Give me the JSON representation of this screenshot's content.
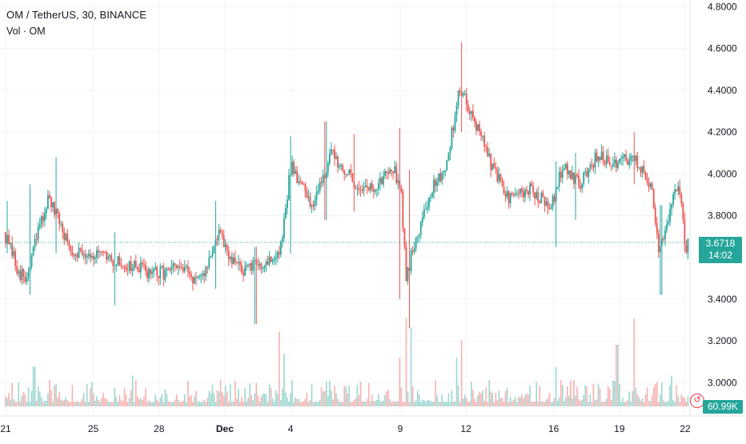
{
  "legend": {
    "title": "OM / TetherUS, 30, BINANCE",
    "volume_label": "Vol · OM"
  },
  "colors": {
    "up": "#26a69a",
    "down": "#ef5350",
    "grid": "#f0f3fa",
    "axis_text": "#131722",
    "last_price_line": "#26a69a"
  },
  "price_tag": {
    "price": "3.6718",
    "countdown": "14:02"
  },
  "volume_tag": "60.99K",
  "alert_icon": "clock-alert-icon",
  "chart_data": {
    "type": "candlestick",
    "title": "OM / TetherUS, 30, BINANCE",
    "ylim": [
      2.82,
      4.86
    ],
    "y_ticks": [
      "4.8000",
      "4.6000",
      "4.4000",
      "4.2000",
      "4.0000",
      "3.8000",
      "3.6000",
      "3.4000",
      "3.2000",
      "3.0000"
    ],
    "y_tick_values": [
      4.8,
      4.6,
      4.4,
      4.2,
      4.0,
      3.8,
      3.6,
      3.4,
      3.2,
      3.0
    ],
    "x_ticks": [
      "21",
      "25",
      "28",
      "Dec",
      "4",
      "9",
      "12",
      "16",
      "19",
      "22"
    ],
    "x_tick_days": [
      0,
      4,
      7,
      10,
      13,
      18,
      21,
      25,
      28,
      31
    ],
    "x_range_days": [
      0,
      31.2
    ],
    "grid": true,
    "last_price": 3.6718,
    "price_path": [
      {
        "day": 0.0,
        "price": 3.72
      },
      {
        "day": 0.6,
        "price": 3.55
      },
      {
        "day": 1.0,
        "price": 3.48
      },
      {
        "day": 1.5,
        "price": 3.7
      },
      {
        "day": 2.0,
        "price": 3.88
      },
      {
        "day": 2.6,
        "price": 3.75
      },
      {
        "day": 3.0,
        "price": 3.64
      },
      {
        "day": 4.0,
        "price": 3.62
      },
      {
        "day": 5.0,
        "price": 3.58
      },
      {
        "day": 6.0,
        "price": 3.55
      },
      {
        "day": 7.0,
        "price": 3.52
      },
      {
        "day": 8.0,
        "price": 3.55
      },
      {
        "day": 9.0,
        "price": 3.48
      },
      {
        "day": 9.8,
        "price": 3.72
      },
      {
        "day": 10.3,
        "price": 3.58
      },
      {
        "day": 11.0,
        "price": 3.54
      },
      {
        "day": 12.0,
        "price": 3.58
      },
      {
        "day": 12.6,
        "price": 3.62
      },
      {
        "day": 13.1,
        "price": 4.05
      },
      {
        "day": 14.0,
        "price": 3.85
      },
      {
        "day": 15.0,
        "price": 4.1
      },
      {
        "day": 16.0,
        "price": 3.95
      },
      {
        "day": 17.0,
        "price": 3.92
      },
      {
        "day": 17.6,
        "price": 4.05
      },
      {
        "day": 18.1,
        "price": 3.95
      },
      {
        "day": 18.35,
        "price": 3.5
      },
      {
        "day": 18.8,
        "price": 3.7
      },
      {
        "day": 19.5,
        "price": 3.92
      },
      {
        "day": 20.2,
        "price": 4.05
      },
      {
        "day": 20.8,
        "price": 4.42
      },
      {
        "day": 21.5,
        "price": 4.25
      },
      {
        "day": 22.2,
        "price": 4.05
      },
      {
        "day": 23.0,
        "price": 3.88
      },
      {
        "day": 24.0,
        "price": 3.92
      },
      {
        "day": 25.0,
        "price": 3.85
      },
      {
        "day": 25.5,
        "price": 4.05
      },
      {
        "day": 26.3,
        "price": 3.95
      },
      {
        "day": 27.0,
        "price": 4.08
      },
      {
        "day": 28.0,
        "price": 4.05
      },
      {
        "day": 28.7,
        "price": 4.08
      },
      {
        "day": 29.5,
        "price": 3.95
      },
      {
        "day": 29.9,
        "price": 3.6
      },
      {
        "day": 30.4,
        "price": 3.85
      },
      {
        "day": 30.8,
        "price": 3.95
      },
      {
        "day": 31.1,
        "price": 3.62
      },
      {
        "day": 31.2,
        "price": 3.67
      }
    ],
    "notable_wicks": [
      {
        "day": 0.1,
        "high": 3.87,
        "low": 3.62
      },
      {
        "day": 1.1,
        "high": 3.95,
        "low": 3.42
      },
      {
        "day": 2.3,
        "high": 4.08,
        "low": 3.62
      },
      {
        "day": 5.0,
        "high": 3.72,
        "low": 3.37
      },
      {
        "day": 9.6,
        "high": 3.87,
        "low": 3.45
      },
      {
        "day": 11.4,
        "high": 3.65,
        "low": 3.28
      },
      {
        "day": 13.0,
        "high": 4.18,
        "low": 3.62
      },
      {
        "day": 14.6,
        "high": 4.25,
        "low": 3.78
      },
      {
        "day": 15.9,
        "high": 4.19,
        "low": 3.82
      },
      {
        "day": 18.0,
        "high": 4.22,
        "low": 3.4
      },
      {
        "day": 18.4,
        "high": 4.02,
        "low": 3.26
      },
      {
        "day": 20.8,
        "high": 4.63,
        "low": 4.2
      },
      {
        "day": 25.1,
        "high": 4.06,
        "low": 3.65
      },
      {
        "day": 26.0,
        "high": 4.1,
        "low": 3.78
      },
      {
        "day": 28.7,
        "high": 4.2,
        "low": 3.95
      },
      {
        "day": 29.9,
        "high": 3.85,
        "low": 3.42
      }
    ],
    "volume_label": "Vol · OM",
    "volume_last": "60.99K",
    "volume_spikes": [
      {
        "day": 1.3,
        "level": 0.45
      },
      {
        "day": 2.0,
        "level": 0.3
      },
      {
        "day": 5.8,
        "level": 0.35
      },
      {
        "day": 9.8,
        "level": 0.3
      },
      {
        "day": 12.5,
        "level": 0.85
      },
      {
        "day": 12.7,
        "level": 0.6
      },
      {
        "day": 18.0,
        "level": 0.55
      },
      {
        "day": 18.3,
        "level": 1.0
      },
      {
        "day": 18.5,
        "level": 0.9
      },
      {
        "day": 20.6,
        "level": 0.55
      },
      {
        "day": 20.8,
        "level": 0.75
      },
      {
        "day": 25.1,
        "level": 0.45
      },
      {
        "day": 27.9,
        "level": 0.7
      },
      {
        "day": 28.7,
        "level": 1.0
      },
      {
        "day": 30.4,
        "level": 0.35
      }
    ]
  }
}
